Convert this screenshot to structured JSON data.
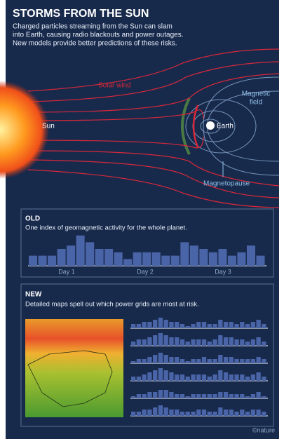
{
  "header": {
    "title": "STORMS FROM THE SUN",
    "subtitle": [
      "Charged particles streaming from the Sun can slam",
      "into Earth, causing radio blackouts and power outages.",
      "New models provide better predictions of these risks."
    ]
  },
  "diagram": {
    "sun": "Sun",
    "solar_wind": "Solar wind",
    "magnetic_field": [
      "Magnetic",
      "field"
    ],
    "earth": "Earth",
    "magnetopause": "Magnetopause"
  },
  "old_panel": {
    "heading": "OLD",
    "text": "One index of geomagnetic activity for the whole planet.",
    "days": [
      "Day 1",
      "Day 2",
      "Day 3"
    ],
    "values": [
      3,
      3,
      3,
      5,
      6,
      9,
      7,
      5,
      5,
      4,
      2,
      4,
      4,
      4,
      3,
      3,
      7,
      6,
      5,
      4,
      5,
      3,
      4,
      6,
      3
    ]
  },
  "new_panel": {
    "heading": "NEW",
    "text": "Detailed maps spell out which power grids are most at risk.",
    "rows": [
      [
        2,
        2,
        3,
        3,
        4,
        5,
        4,
        3,
        3,
        2,
        1,
        2,
        3,
        3,
        2,
        2,
        4,
        3,
        3,
        2,
        3,
        2,
        3,
        4,
        2
      ],
      [
        2,
        3,
        3,
        4,
        5,
        6,
        5,
        4,
        4,
        3,
        2,
        3,
        3,
        3,
        2,
        3,
        5,
        4,
        4,
        3,
        3,
        2,
        3,
        4,
        2
      ],
      [
        1,
        2,
        2,
        3,
        4,
        5,
        4,
        3,
        3,
        2,
        1,
        2,
        2,
        3,
        2,
        2,
        4,
        3,
        3,
        2,
        2,
        2,
        2,
        3,
        2
      ],
      [
        2,
        2,
        3,
        4,
        5,
        6,
        5,
        4,
        3,
        3,
        2,
        3,
        3,
        3,
        2,
        3,
        5,
        4,
        3,
        3,
        3,
        2,
        3,
        4,
        2
      ],
      [
        1,
        2,
        2,
        3,
        3,
        4,
        4,
        3,
        2,
        2,
        1,
        2,
        2,
        2,
        2,
        2,
        3,
        3,
        2,
        2,
        2,
        1,
        2,
        3,
        1
      ],
      [
        2,
        2,
        3,
        3,
        4,
        5,
        4,
        3,
        3,
        2,
        2,
        2,
        3,
        3,
        2,
        2,
        4,
        3,
        3,
        2,
        3,
        2,
        3,
        3,
        2
      ]
    ]
  },
  "footer": {
    "credit": "©nature"
  }
}
